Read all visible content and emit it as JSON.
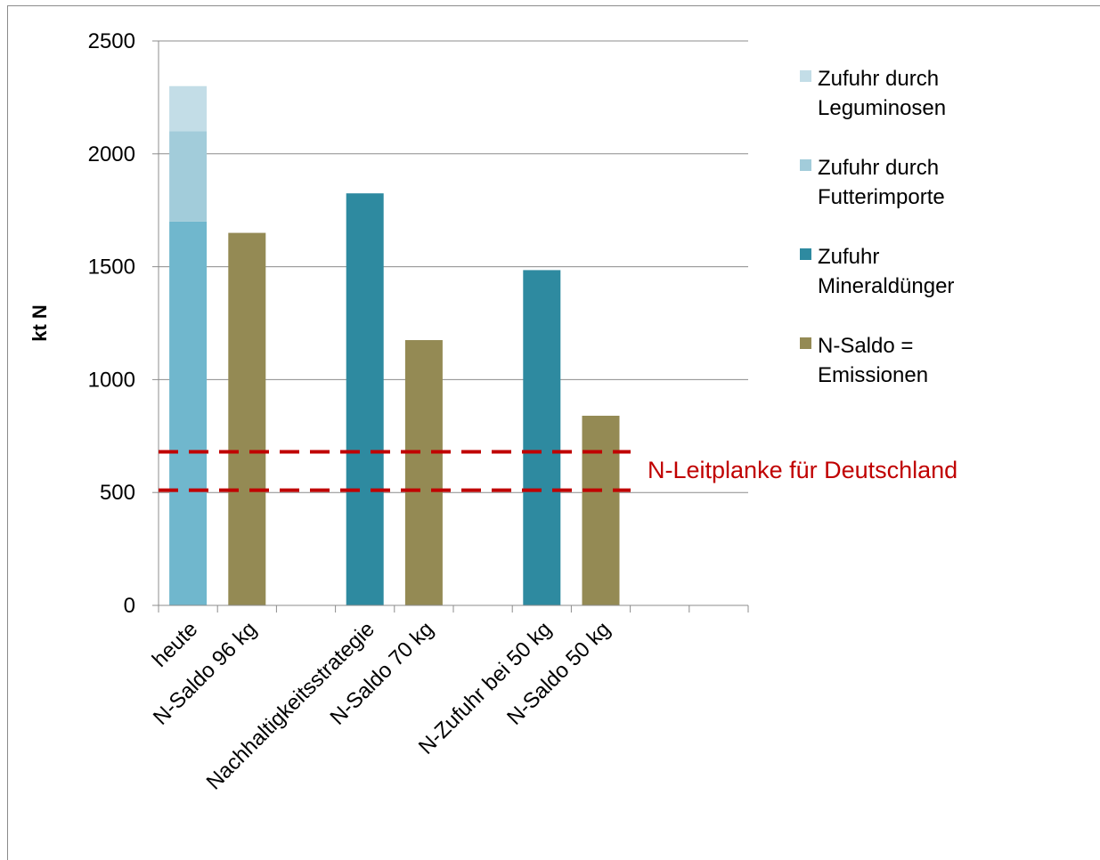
{
  "chart_data": {
    "type": "bar",
    "title": "",
    "xlabel": "",
    "ylabel": "kt N",
    "ylim": [
      0,
      2500
    ],
    "yticks": [
      "0",
      "500",
      "1000",
      "1500",
      "2000",
      "2500"
    ],
    "ytick_values": [
      0,
      500,
      1000,
      1500,
      2000,
      2500
    ],
    "grid": true,
    "legend_position": "right",
    "categories": [
      "heute",
      "N-Saldo 96 kg",
      "",
      "Nachhaltigkeitsstrategie",
      "N-Saldo 70 kg",
      "",
      "N-Zufuhr bei  50 kg",
      "N-Saldo 50 kg",
      "",
      ""
    ],
    "series": [
      {
        "name": "Zufuhr durch Leguminosen",
        "values": [
          200,
          null,
          null,
          null,
          null,
          null,
          null,
          null,
          null,
          null
        ]
      },
      {
        "name": "Zufuhr durch Futterimporte",
        "values": [
          400,
          null,
          null,
          null,
          null,
          null,
          null,
          null,
          null,
          null
        ]
      },
      {
        "name": "Zufuhr Mineraldünger",
        "values": [
          1700,
          null,
          null,
          1825,
          null,
          null,
          1485,
          null,
          null,
          null
        ]
      },
      {
        "name": "N-Saldo = Emissionen",
        "values": [
          null,
          1650,
          null,
          null,
          1175,
          null,
          null,
          840,
          null,
          null
        ]
      }
    ],
    "stacked_totals": [
      2300,
      1650,
      null,
      1825,
      1175,
      null,
      1485,
      840,
      null,
      null
    ],
    "legend": [
      {
        "lines": [
          "Zufuhr durch",
          "Leguminosen"
        ],
        "color": "#c3dde7"
      },
      {
        "lines": [
          "Zufuhr durch",
          "Futterimporte"
        ],
        "color": "#a2ccda"
      },
      {
        "lines": [
          "Zufuhr",
          "Mineraldünger"
        ],
        "color": "#2e8aa0"
      },
      {
        "lines": [
          "N-Saldo =",
          "Emissionen"
        ],
        "color": "#948a54"
      }
    ],
    "guardrail": {
      "label": "N-Leitplanke für Deutschland",
      "lower": 510,
      "upper": 680,
      "color": "#c00000"
    },
    "colors": {
      "leguminosen": "#c3dde7",
      "futterimporte": "#a2ccda",
      "mineral_heute": "#70b7cd",
      "mineral": "#2e8aa0",
      "saldo": "#948a54",
      "grid": "#8c8c8c",
      "text": "#000000"
    }
  }
}
